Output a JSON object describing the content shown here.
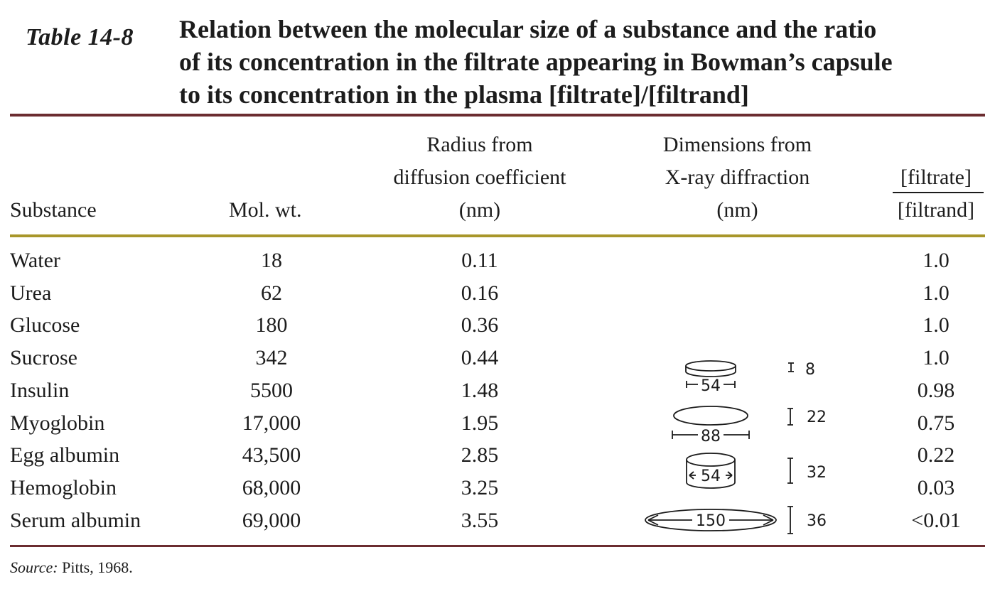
{
  "table_label": "Table 14-8",
  "caption": {
    "line1": "Relation between the molecular size of a substance and the ratio",
    "line2": "of its concentration in the filtrate appearing in Bowman’s capsule",
    "line3": "to its concentration in the plasma [filtrate]/[filtrand]"
  },
  "headers": {
    "substance": "Substance",
    "mol_wt": "Mol. wt.",
    "radius": [
      "Radius from",
      "diffusion coefficient",
      "(nm)"
    ],
    "dimensions": [
      "Dimensions from",
      "X-ray diffraction",
      "(nm)"
    ],
    "ratio_num": "[filtrate]",
    "ratio_den": "[filtrand]"
  },
  "rows": [
    {
      "substance": "Water",
      "mol_wt": "18",
      "radius": "0.11",
      "ratio": "1.0"
    },
    {
      "substance": "Urea",
      "mol_wt": "62",
      "radius": "0.16",
      "ratio": "1.0"
    },
    {
      "substance": "Glucose",
      "mol_wt": "180",
      "radius": "0.36",
      "ratio": "1.0"
    },
    {
      "substance": "Sucrose",
      "mol_wt": "342",
      "radius": "0.44",
      "ratio": "1.0"
    },
    {
      "substance": "Insulin",
      "mol_wt": "5500",
      "radius": "1.48",
      "ratio": "0.98"
    },
    {
      "substance": "Myoglobin",
      "mol_wt": "17,000",
      "radius": "1.95",
      "ratio": "0.75"
    },
    {
      "substance": "Egg albumin",
      "mol_wt": "43,500",
      "radius": "2.85",
      "ratio": "0.22"
    },
    {
      "substance": "Hemoglobin",
      "mol_wt": "68,000",
      "radius": "3.25",
      "ratio": "0.03"
    },
    {
      "substance": "Serum albumin",
      "mol_wt": "69,000",
      "radius": "3.55",
      "ratio": "<0.01"
    }
  ],
  "dimension_figures": [
    {
      "shape": "disc",
      "width": "54",
      "height": "8"
    },
    {
      "shape": "ellipsoid",
      "width": "88",
      "height": "22"
    },
    {
      "shape": "cylinder",
      "width": "54",
      "height": "32"
    },
    {
      "shape": "elongated-ellipsoid",
      "width": "150",
      "height": "36"
    }
  ],
  "source": {
    "label": "Source:",
    "text": " Pitts, 1968."
  }
}
